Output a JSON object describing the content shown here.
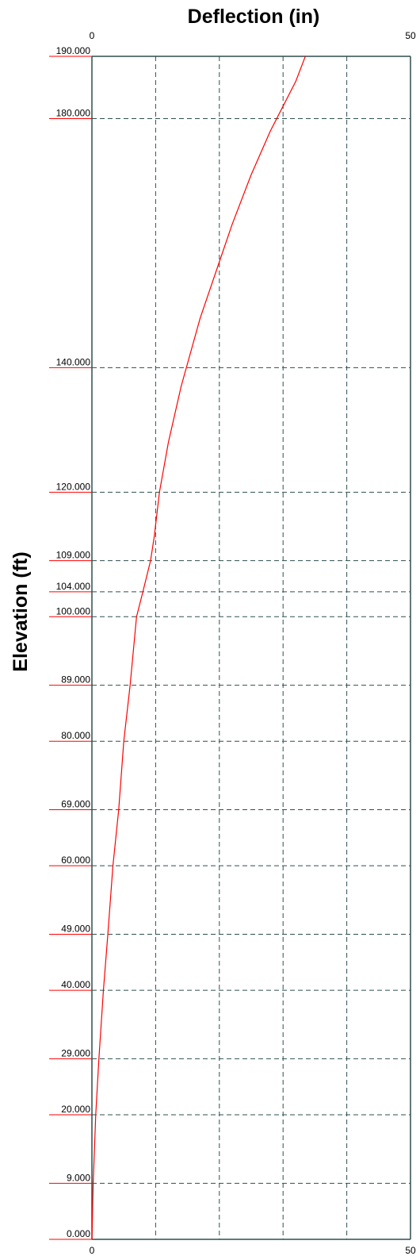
{
  "chart_data": {
    "type": "line",
    "title": "Deflection (in)",
    "xlabel": "Deflection (in)",
    "ylabel": "Elevation (ft)",
    "xlim": [
      0,
      50
    ],
    "ylim": [
      0,
      190
    ],
    "x_ticks": [
      0,
      50
    ],
    "x_tick_labels": [
      "0",
      "50"
    ],
    "x_gridlines": [
      10,
      20,
      30,
      40
    ],
    "y_ticks": [
      0,
      9,
      20,
      29,
      40,
      49,
      60,
      69,
      80,
      89,
      100,
      104,
      109,
      120,
      140,
      180,
      190
    ],
    "y_tick_labels": [
      "0.000",
      "9.000",
      "20.000",
      "29.000",
      "40.000",
      "49.000",
      "60.000",
      "69.000",
      "80.000",
      "89.000",
      "100.000",
      "104.000",
      "109.000",
      "120.000",
      "140.000",
      "180.000",
      "190.000"
    ],
    "grid": true,
    "x_axis_position": "top and bottom",
    "series": [
      {
        "color": "#ff0000",
        "x": [
          0.0,
          0.2,
          0.6,
          1.1,
          1.8,
          2.5,
          3.3,
          4.2,
          5.0,
          6.0,
          7.0,
          8.0,
          9.2,
          9.8,
          10.6,
          12.0,
          14.0,
          17.0,
          20.0,
          22.0,
          25.0,
          28.0,
          30.0,
          32.0,
          33.5
        ],
        "y": [
          0,
          9,
          20,
          29,
          40,
          49,
          60,
          69,
          80,
          89,
          100,
          104,
          109,
          113,
          120,
          128,
          137,
          148,
          157,
          163,
          171,
          178,
          182,
          186,
          190
        ]
      }
    ],
    "colors": {
      "axis": "#2f4f4f",
      "grid": "#2f4f4f",
      "tick_underline": "#ff0000",
      "series": "#ff0000"
    }
  }
}
